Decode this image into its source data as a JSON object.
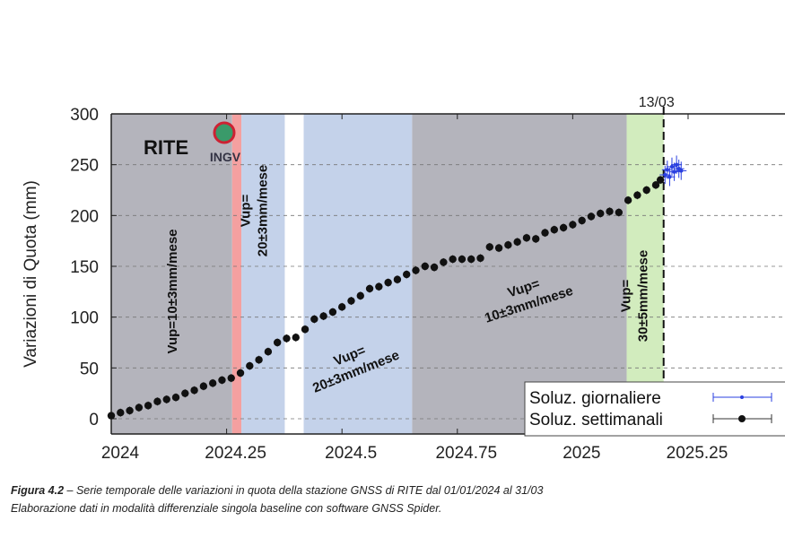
{
  "chart_data": {
    "type": "scatter",
    "station": "RITE",
    "logo": "INGV",
    "y_label": "Variazioni di Quota (mm)",
    "xlim": [
      2024,
      2025.46
    ],
    "ylim": [
      -15,
      300
    ],
    "xticks": [
      2024,
      2024.25,
      2024.5,
      2024.75,
      2025,
      2025.25
    ],
    "yticks": [
      0,
      50,
      100,
      150,
      200,
      250,
      300
    ],
    "grid": true,
    "periods": [
      {
        "start": 2024,
        "end": 2024.262,
        "color": "#b4b4bc"
      },
      {
        "start": 2024.262,
        "end": 2024.282,
        "color": "#f4a0a0"
      },
      {
        "start": 2024.282,
        "end": 2024.376,
        "color": "#c4d2ea"
      },
      {
        "start": 2024.417,
        "end": 2024.652,
        "color": "#c4d2ea"
      },
      {
        "start": 2024.652,
        "end": 2025.117,
        "color": "#b4b4bc"
      },
      {
        "start": 2025.117,
        "end": 2025.197,
        "color": "#d2ecbe"
      }
    ],
    "event": {
      "x": 2025.197,
      "label": "13/03"
    },
    "annotations": [
      {
        "lines": [
          "Vup=10±3mm/mese"
        ]
      },
      {
        "lines": [
          "Vup=",
          "20±3mm/mese"
        ]
      },
      {
        "lines": [
          "Vup=",
          "20±3mm/mese"
        ]
      },
      {
        "lines": [
          "Vup=",
          "10±3mm/mese"
        ]
      },
      {
        "lines": [
          "Vup=",
          "30±5mm/mese"
        ]
      }
    ],
    "series": [
      {
        "name": "Soluz. giornaliere",
        "color": "#2a3fe0",
        "error": 9,
        "x": [
          2025.2,
          2025.205,
          2025.21,
          2025.215,
          2025.22,
          2025.225,
          2025.23,
          2025.235
        ],
        "values": [
          240,
          245,
          238,
          248,
          243,
          250,
          246,
          244
        ]
      },
      {
        "name": "Soluz. settimanali",
        "color": "#111111",
        "error": 4,
        "x": [
          2024,
          2024.02,
          2024.04,
          2024.06,
          2024.08,
          2024.1,
          2024.12,
          2024.14,
          2024.16,
          2024.18,
          2024.2,
          2024.22,
          2024.24,
          2024.26,
          2024.28,
          2024.3,
          2024.32,
          2024.34,
          2024.36,
          2024.38,
          2024.4,
          2024.42,
          2024.44,
          2024.46,
          2024.48,
          2024.5,
          2024.52,
          2024.54,
          2024.56,
          2024.58,
          2024.6,
          2024.62,
          2024.64,
          2024.66,
          2024.68,
          2024.7,
          2024.72,
          2024.74,
          2024.76,
          2024.78,
          2024.8,
          2024.82,
          2024.84,
          2024.86,
          2024.88,
          2024.9,
          2024.92,
          2024.94,
          2024.96,
          2024.98,
          2025,
          2025.02,
          2025.04,
          2025.06,
          2025.08,
          2025.1,
          2025.12,
          2025.14,
          2025.16,
          2025.18,
          2025.19
        ],
        "values": [
          3,
          6,
          8,
          11,
          13,
          17,
          19,
          21,
          25,
          28,
          32,
          35,
          38,
          40,
          45,
          52,
          58,
          66,
          75,
          79,
          80,
          88,
          98,
          101,
          105,
          110,
          116,
          121,
          128,
          130,
          134,
          137,
          142,
          146,
          150,
          149,
          154,
          157,
          157,
          157,
          158,
          169,
          168,
          171,
          174,
          178,
          177,
          183,
          186,
          188,
          191,
          195,
          199,
          202,
          204,
          203,
          215,
          220,
          225,
          230,
          235
        ]
      }
    ]
  },
  "caption": {
    "label": "Figura 4.2",
    "line1": " – Serie temporale delle variazioni in quota della stazione GNSS di RITE dal 01/01/2024 al 31/03",
    "line2": "Elaborazione dati in modalità differenziale singola baseline con software GNSS Spider."
  }
}
